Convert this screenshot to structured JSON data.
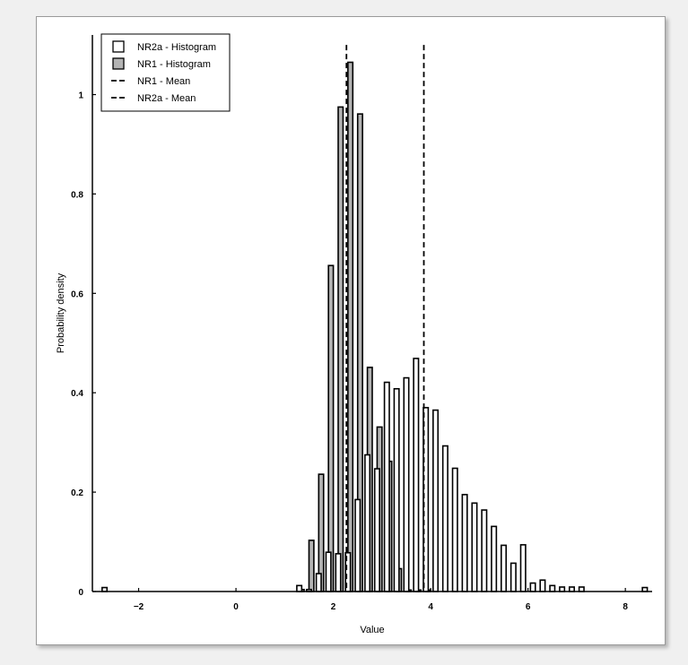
{
  "chart_data": {
    "type": "bar",
    "title": "",
    "xlabel": "Value",
    "ylabel": "Probability density",
    "xlim": [
      -2.95,
      8.55
    ],
    "ylim": [
      0,
      1.12
    ],
    "xticks": [
      -2,
      0,
      2,
      4,
      6,
      8
    ],
    "yticks": [
      0,
      0.2,
      0.4,
      0.6,
      0.8,
      1
    ],
    "ytick_labels": [
      "0",
      "0.2",
      "0.4",
      "0.6",
      "0.8",
      "1"
    ],
    "grid": false,
    "legend_placement": "top-left",
    "legend": [
      {
        "label": "NR2a - Histogram",
        "kind": "patch",
        "fill": "#ffffff"
      },
      {
        "label": "NR1 - Histogram",
        "kind": "patch",
        "fill": "#b3b3b3"
      },
      {
        "label": "NR1 - Mean",
        "kind": "dash"
      },
      {
        "label": "NR2a - Mean",
        "kind": "dash"
      }
    ],
    "series": [
      {
        "name": "NR1 - Histogram",
        "fill": "#b3b3b3",
        "bar_width": 0.1,
        "x": [
          1.35,
          1.55,
          1.75,
          1.95,
          2.15,
          2.35,
          2.55,
          2.75,
          2.95,
          3.15,
          3.35,
          3.55,
          3.75,
          3.95
        ],
        "values": [
          0.004,
          0.103,
          0.236,
          0.656,
          0.975,
          1.065,
          0.961,
          0.451,
          0.331,
          0.262,
          0.046,
          0.003,
          0.003,
          0.003
        ]
      },
      {
        "name": "NR2a - Histogram",
        "fill": "#ffffff",
        "bar_width": 0.1,
        "x": [
          -2.7,
          1.3,
          1.5,
          1.7,
          1.9,
          2.1,
          2.3,
          2.5,
          2.7,
          2.9,
          3.1,
          3.3,
          3.5,
          3.7,
          3.9,
          4.1,
          4.3,
          4.5,
          4.7,
          4.9,
          5.1,
          5.3,
          5.5,
          5.7,
          5.9,
          6.1,
          6.3,
          6.5,
          6.7,
          6.9,
          7.1,
          8.4
        ],
        "values": [
          0.008,
          0.012,
          0.004,
          0.036,
          0.079,
          0.076,
          0.078,
          0.185,
          0.275,
          0.247,
          0.421,
          0.408,
          0.43,
          0.469,
          0.37,
          0.365,
          0.293,
          0.248,
          0.195,
          0.178,
          0.164,
          0.131,
          0.093,
          0.057,
          0.094,
          0.017,
          0.023,
          0.012,
          0.009,
          0.009,
          0.009,
          0.008
        ]
      }
    ],
    "means": [
      {
        "name": "NR1 - Mean",
        "x": 2.27,
        "y_top": 1.1
      },
      {
        "name": "NR2a - Mean",
        "x": 3.86,
        "y_top": 1.1
      }
    ]
  }
}
